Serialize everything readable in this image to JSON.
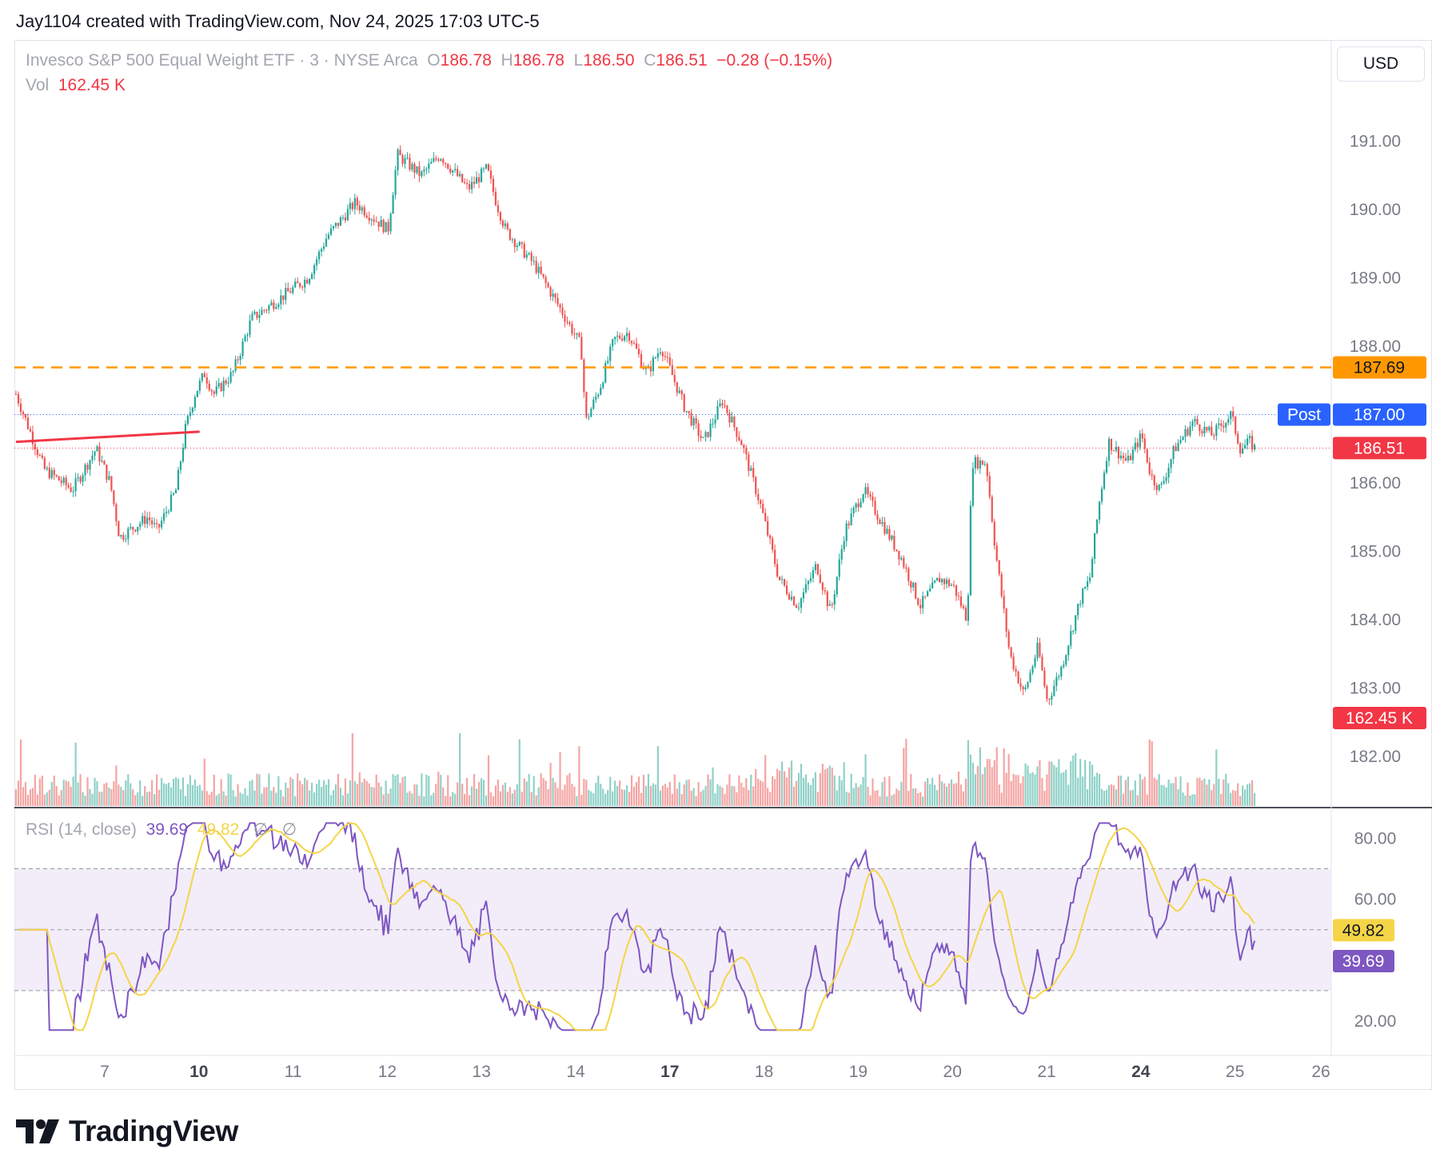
{
  "header": {
    "author_line": "Jay1104 created with TradingView.com, Nov 24, 2025 17:03 UTC-5"
  },
  "legend": {
    "symbol": "Invesco S&P 500 Equal Weight ETF · 3 · NYSE Arca",
    "open_label": "O",
    "open": "186.78",
    "high_label": "H",
    "high": "186.78",
    "low_label": "L",
    "low": "186.50",
    "close_label": "C",
    "close": "186.51",
    "change": "−0.28 (−0.15%)",
    "vol_label": "Vol",
    "vol_value": "162.45 K"
  },
  "rsi_legend": {
    "label": "RSI (14, close)",
    "rsi_value": "39.69",
    "ma_value": "49.82",
    "sym1": "∅",
    "sym2": "∅"
  },
  "currency": "USD",
  "footer": {
    "brand": "TradingView"
  },
  "colors": {
    "up": "#26a69a",
    "down": "#ef5350",
    "orange": "#ff9800",
    "trend": "#f23645",
    "rsi": "#7e57c2",
    "rsi_ma": "#f5d547",
    "post": "#2962ff"
  },
  "chart_data": {
    "type": "candlestick",
    "price_axis": {
      "min": 181.25,
      "max": 191.72,
      "ticks": [
        "191.00",
        "190.00",
        "189.00",
        "188.00",
        "186.00",
        "185.00",
        "184.00",
        "183.00",
        "182.00"
      ]
    },
    "x_axis": {
      "labels": [
        {
          "text": "7",
          "bold": false
        },
        {
          "text": "10",
          "bold": true
        },
        {
          "text": "11",
          "bold": false
        },
        {
          "text": "12",
          "bold": false
        },
        {
          "text": "13",
          "bold": false
        },
        {
          "text": "14",
          "bold": false
        },
        {
          "text": "17",
          "bold": true
        },
        {
          "text": "18",
          "bold": false
        },
        {
          "text": "19",
          "bold": false
        },
        {
          "text": "20",
          "bold": false
        },
        {
          "text": "21",
          "bold": false
        },
        {
          "text": "24",
          "bold": true
        },
        {
          "text": "25",
          "bold": false
        },
        {
          "text": "26",
          "bold": false
        }
      ]
    },
    "price_path": [
      [
        0,
        187.3
      ],
      [
        0.3,
        186.2
      ],
      [
        0.6,
        185.9
      ],
      [
        0.85,
        186.5
      ],
      [
        1.0,
        186.0
      ],
      [
        1.1,
        185.2
      ],
      [
        1.4,
        185.5
      ],
      [
        1.5,
        185.3
      ],
      [
        1.7,
        185.9
      ],
      [
        1.8,
        186.8
      ],
      [
        1.9,
        187.3
      ],
      [
        2.0,
        187.6
      ],
      [
        2.1,
        187.3
      ],
      [
        2.3,
        187.6
      ],
      [
        2.5,
        188.4
      ],
      [
        2.9,
        188.8
      ],
      [
        3.1,
        189.0
      ],
      [
        3.3,
        189.6
      ],
      [
        3.6,
        190.1
      ],
      [
        3.95,
        189.7
      ],
      [
        4.05,
        190.8
      ],
      [
        4.3,
        190.5
      ],
      [
        4.5,
        190.8
      ],
      [
        4.8,
        190.3
      ],
      [
        5.0,
        190.6
      ],
      [
        5.1,
        190.1
      ],
      [
        5.2,
        189.7
      ],
      [
        5.5,
        189.2
      ],
      [
        5.8,
        188.5
      ],
      [
        6.0,
        188.0
      ],
      [
        6.05,
        186.9
      ],
      [
        6.2,
        187.4
      ],
      [
        6.35,
        188.1
      ],
      [
        6.5,
        188.2
      ],
      [
        6.7,
        187.6
      ],
      [
        6.85,
        188.0
      ],
      [
        7.1,
        187.1
      ],
      [
        7.3,
        186.6
      ],
      [
        7.5,
        187.2
      ],
      [
        7.7,
        186.6
      ],
      [
        7.9,
        185.7
      ],
      [
        8.1,
        184.6
      ],
      [
        8.3,
        184.2
      ],
      [
        8.5,
        184.8
      ],
      [
        8.65,
        184.1
      ],
      [
        8.8,
        185.3
      ],
      [
        9.0,
        185.9
      ],
      [
        9.2,
        185.4
      ],
      [
        9.4,
        184.9
      ],
      [
        9.6,
        184.2
      ],
      [
        9.8,
        184.6
      ],
      [
        9.95,
        184.5
      ],
      [
        10.1,
        184.0
      ],
      [
        10.15,
        186.3
      ],
      [
        10.3,
        186.3
      ],
      [
        10.4,
        185.0
      ],
      [
        10.55,
        183.5
      ],
      [
        10.7,
        182.9
      ],
      [
        10.85,
        183.6
      ],
      [
        10.95,
        182.8
      ],
      [
        11.1,
        183.3
      ],
      [
        11.3,
        184.3
      ],
      [
        11.4,
        184.6
      ],
      [
        11.5,
        185.7
      ],
      [
        11.6,
        186.6
      ],
      [
        11.8,
        186.3
      ],
      [
        11.95,
        186.7
      ],
      [
        12.05,
        186.1
      ],
      [
        12.15,
        185.9
      ],
      [
        12.3,
        186.5
      ],
      [
        12.5,
        186.9
      ],
      [
        12.7,
        186.7
      ],
      [
        12.9,
        187.0
      ],
      [
        13.0,
        186.5
      ],
      [
        13.1,
        186.6
      ],
      [
        13.15,
        186.51
      ]
    ],
    "moving_lines": [
      {
        "kind": "horizontal-dashed",
        "value": 187.69,
        "label": "187.69"
      },
      {
        "kind": "post",
        "value": 187.0,
        "label": "187.00",
        "tag": "Post"
      },
      {
        "kind": "last",
        "value": 186.51,
        "label": "186.51"
      }
    ],
    "trendline": {
      "from": [
        0,
        186.6
      ],
      "to": [
        1.95,
        186.75
      ]
    },
    "volume": {
      "last_label": "162.45 K",
      "max": 300
    },
    "rsi": {
      "min": 10,
      "max": 88,
      "upper": 70,
      "mid": 50,
      "lower": 30,
      "ticks": [
        "80.00",
        "60.00",
        "20.00"
      ],
      "last": 39.69,
      "ma_last": 49.82
    }
  }
}
